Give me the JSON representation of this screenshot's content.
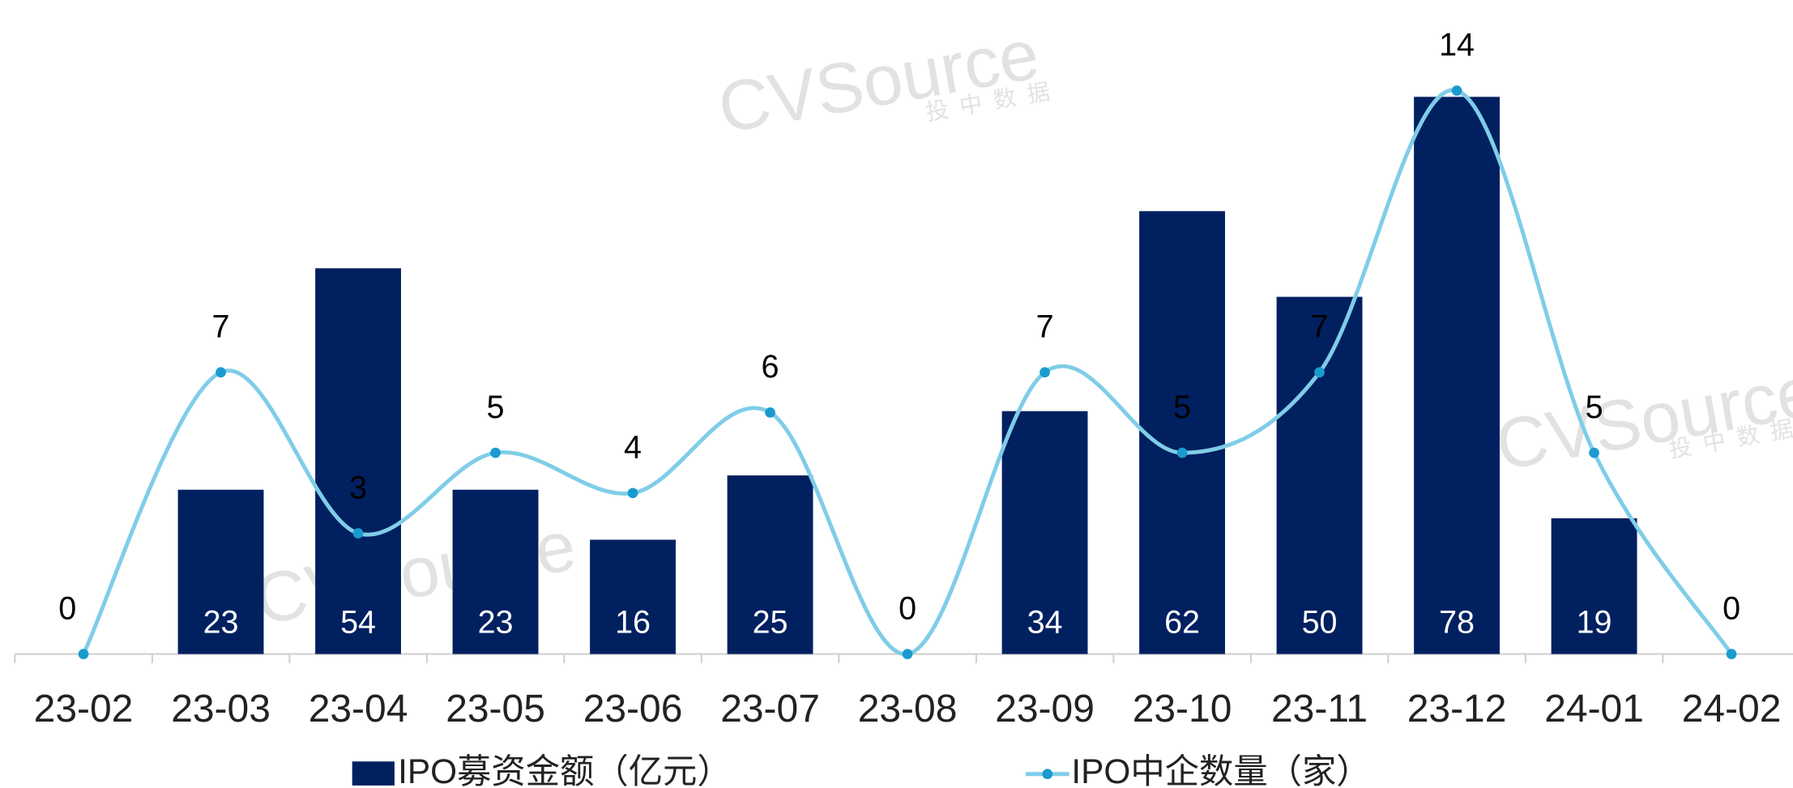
{
  "chart_data": {
    "type": "bar-line",
    "categories": [
      "23-02",
      "23-03",
      "23-04",
      "23-05",
      "23-06",
      "23-07",
      "23-08",
      "23-09",
      "23-10",
      "23-11",
      "23-12",
      "24-01",
      "24-02"
    ],
    "series": [
      {
        "name": "IPO募资金额（亿元）",
        "type": "bar",
        "color": "#002060",
        "values": [
          null,
          23,
          54,
          23,
          16,
          25,
          null,
          34,
          62,
          50,
          78,
          19,
          null
        ]
      },
      {
        "name": "IPO中企数量（家）",
        "type": "line",
        "axis": "y2",
        "color": "#7fcde8",
        "marker_color": "#1a9bd0",
        "values": [
          0,
          7,
          3,
          5,
          4,
          6,
          0,
          7,
          5,
          7,
          14,
          5,
          0
        ]
      }
    ],
    "ylim": [
      0,
      80
    ],
    "y2lim": [
      0,
      14.2
    ],
    "watermark": "CVSource",
    "watermark_sub": "投中数据"
  }
}
